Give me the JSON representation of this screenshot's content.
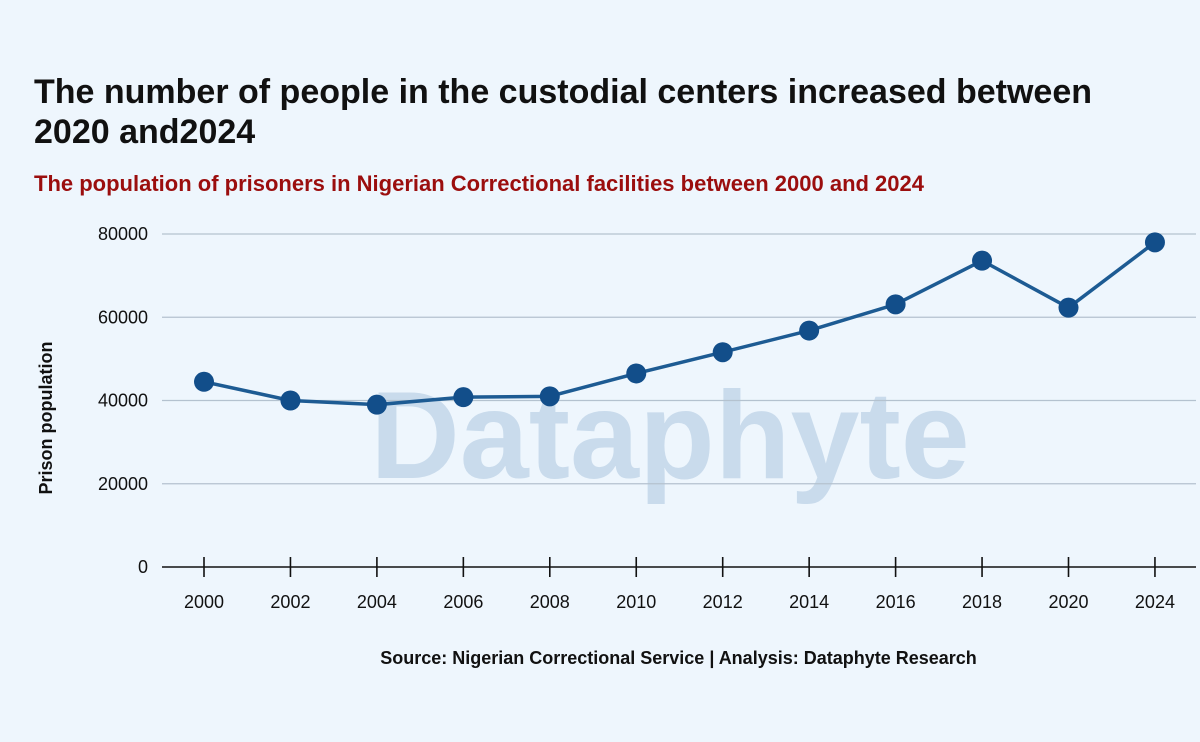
{
  "header": {
    "title": "The number of people in the custodial centers increased between 2020 and2024",
    "subtitle": "The population of prisoners in Nigerian Correctional facilities between 2000 and 2024"
  },
  "footer": {
    "source": "Source: Nigerian Correctional Service | Analysis: Dataphyte Research"
  },
  "watermark": "Dataphyte",
  "colors": {
    "background": "#eef6fd",
    "line": "#1d5b93",
    "marker": "#124e8a",
    "subtitle": "#9b0e0e",
    "grid": "#b4c2cf",
    "watermark": "#c9dbec"
  },
  "chart_data": {
    "type": "line",
    "ylabel": "Prison population",
    "xlabel": "",
    "ylim": [
      0,
      80000
    ],
    "yticks": [
      0,
      20000,
      40000,
      60000,
      80000
    ],
    "grid": true,
    "categories": [
      "2000",
      "2002",
      "2004",
      "2006",
      "2008",
      "2010",
      "2012",
      "2014",
      "2016",
      "2018",
      "2020",
      "2024"
    ],
    "values": [
      44500,
      40000,
      39000,
      40800,
      41000,
      46500,
      51600,
      56800,
      63100,
      73600,
      62300,
      78000
    ]
  }
}
